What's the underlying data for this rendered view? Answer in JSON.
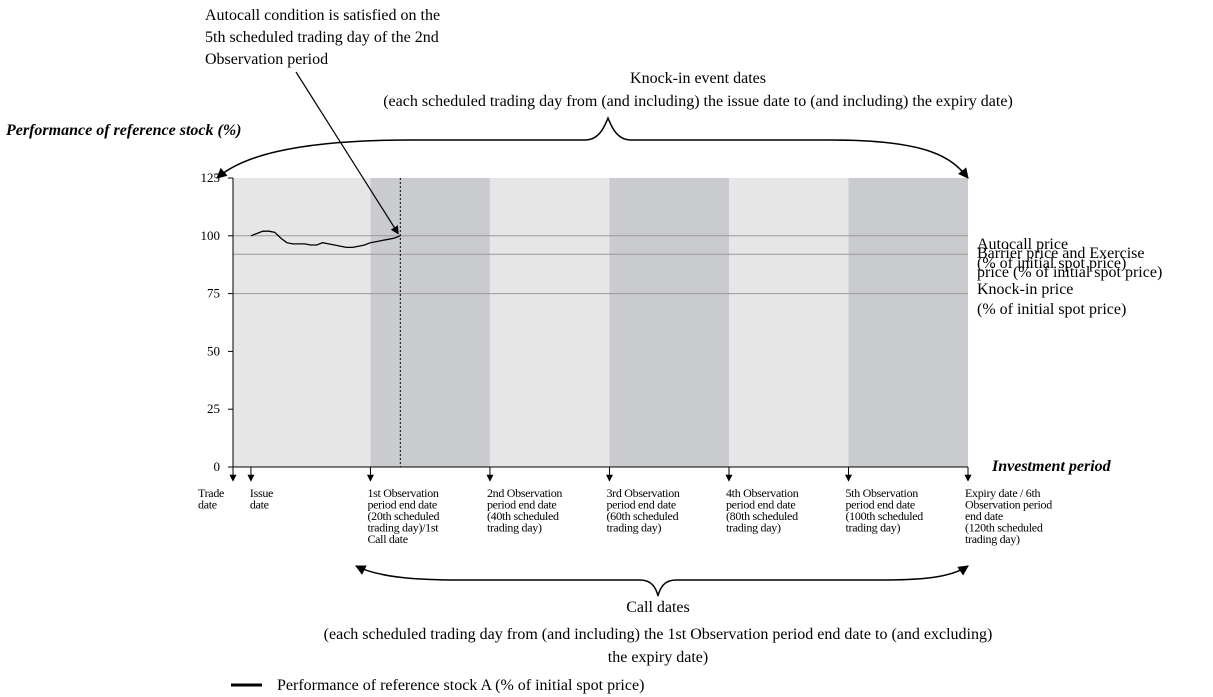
{
  "colors": {
    "light_band": "#e6e6e6",
    "dark_band": "#c9cbce",
    "line": "#000000",
    "ref_line": "#9a9a9a"
  },
  "annotations": {
    "autocall_note": [
      "Autocall condition is satisfied on the",
      "5th scheduled trading day of the 2nd",
      "Observation period"
    ],
    "knockin_dates": [
      "Knock-in event dates",
      "(each scheduled trading day from (and including) the issue date to (and including) the expiry date)"
    ],
    "call_dates": [
      "Call dates",
      "(each scheduled trading day from (and including) the 1st Observation period end date to (and excluding)",
      "the expiry date)"
    ]
  },
  "legend": {
    "series_label": "Performance of reference stock A (% of initial spot price)"
  },
  "chart_data": {
    "type": "line",
    "ylabel": "Performance of reference stock (%)",
    "xlabel": "Investment period",
    "ylim": [
      0,
      125
    ],
    "yticks": [
      "0",
      "25",
      "50",
      "75",
      "100",
      "125"
    ],
    "xlim": [
      -3,
      120
    ],
    "series": [
      {
        "name": "Performance of reference stock A (% of initial spot price)",
        "x": [
          0,
          1,
          2,
          3,
          4,
          5,
          6,
          7,
          8,
          9,
          10,
          11,
          12,
          13,
          14,
          15,
          16,
          17,
          18,
          19,
          20,
          21,
          22,
          23,
          24,
          25
        ],
        "y": [
          100,
          101,
          102,
          102,
          101.5,
          99,
          97,
          96.5,
          96.5,
          96.5,
          96,
          96,
          97,
          96.5,
          96,
          95.5,
          95,
          95,
          95.5,
          96,
          97,
          97.5,
          98,
          98.5,
          99,
          100
        ]
      }
    ],
    "reference_lines": [
      {
        "y": 100,
        "label": [
          "Autocall price",
          "(% of initial spot price)"
        ]
      },
      {
        "y": 92,
        "label": [
          "Barrier price and Exercise",
          "price (% of initial spot price)"
        ]
      },
      {
        "y": 75,
        "label": [
          "Knock-in price",
          "(% of initial spot price)"
        ]
      }
    ],
    "bands": [
      {
        "from": -3,
        "to": 20,
        "shade": "light"
      },
      {
        "from": 20,
        "to": 40,
        "shade": "dark"
      },
      {
        "from": 40,
        "to": 60,
        "shade": "light"
      },
      {
        "from": 60,
        "to": 80,
        "shade": "dark"
      },
      {
        "from": 80,
        "to": 100,
        "shade": "light"
      },
      {
        "from": 100,
        "to": 120,
        "shade": "dark"
      }
    ],
    "autocall_day": 25,
    "x_markers": [
      {
        "x": -3,
        "label": [
          "Trade",
          "date"
        ]
      },
      {
        "x": 0,
        "label": [
          "Issue",
          "date"
        ]
      },
      {
        "x": 20,
        "label": [
          "1st Observation",
          "period end date",
          "(20th scheduled",
          "trading day)/1st",
          "Call date"
        ]
      },
      {
        "x": 40,
        "label": [
          "2nd Observation",
          "period end date",
          "(40th scheduled",
          "trading day)"
        ]
      },
      {
        "x": 60,
        "label": [
          "3rd Observation",
          "period end date",
          "(60th scheduled",
          "trading day)"
        ]
      },
      {
        "x": 80,
        "label": [
          "4th Observation",
          "period end date",
          "(80th scheduled",
          "trading day)"
        ]
      },
      {
        "x": 100,
        "label": [
          "5th Observation",
          "period end date",
          "(100th scheduled",
          "trading day)"
        ]
      },
      {
        "x": 120,
        "label": [
          "Expiry date / 6th",
          "Observation period",
          "end date",
          "(120th scheduled",
          "trading day)"
        ]
      }
    ]
  }
}
